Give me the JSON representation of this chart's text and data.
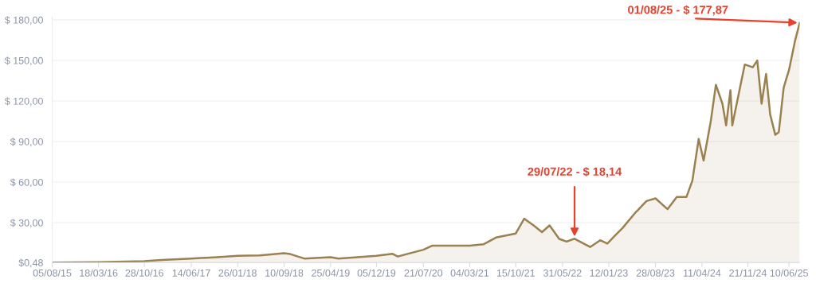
{
  "chart_data": {
    "type": "area",
    "x": [
      "2015-08-05",
      "2016-03-18",
      "2016-10-28",
      "2017-01-20",
      "2017-06-14",
      "2017-10-20",
      "2018-01-26",
      "2018-05-15",
      "2018-09-10",
      "2018-10-10",
      "2018-12-20",
      "2019-04-25",
      "2019-06-03",
      "2019-12-05",
      "2020-02-20",
      "2020-03-18",
      "2020-07-21",
      "2020-09-01",
      "2020-12-10",
      "2021-03-04",
      "2021-05-10",
      "2021-07-10",
      "2021-10-15",
      "2021-11-25",
      "2022-01-10",
      "2022-02-20",
      "2022-03-29",
      "2022-05-15",
      "2022-06-20",
      "2022-07-29",
      "2022-10-13",
      "2022-12-01",
      "2023-01-05",
      "2023-02-15",
      "2023-03-20",
      "2023-05-25",
      "2023-06-01",
      "2023-07-15",
      "2023-08-28",
      "2023-10-26",
      "2023-12-10",
      "2024-01-26",
      "2024-02-24",
      "2024-03-26",
      "2024-04-19",
      "2024-05-24",
      "2024-06-18",
      "2024-07-20",
      "2024-08-07",
      "2024-08-28",
      "2024-09-06",
      "2024-10-15",
      "2024-11-06",
      "2024-12-15",
      "2025-01-06",
      "2025-01-27",
      "2025-02-18",
      "2025-03-10",
      "2025-04-04",
      "2025-04-21",
      "2025-05-15",
      "2025-06-10",
      "2025-07-10",
      "2025-08-01"
    ],
    "series": [
      {
        "color": "#9a8150",
        "values": [
          0.5,
          0.8,
          1.6,
          2.5,
          3.5,
          4.5,
          5.5,
          5.8,
          7.4,
          6.8,
          3.4,
          4.5,
          3.5,
          5.5,
          7.0,
          5.0,
          10.0,
          13.0,
          13.0,
          13.0,
          14.0,
          19.0,
          22.0,
          33.0,
          28.0,
          23.0,
          28.0,
          18.0,
          16.0,
          18.14,
          12.0,
          17.0,
          14.5,
          21.0,
          26.0,
          38.0,
          39.0,
          46.0,
          48.0,
          40.0,
          49.0,
          49.0,
          61.0,
          92.0,
          76.0,
          105.0,
          132.0,
          118.0,
          102.0,
          128.0,
          102.0,
          131.0,
          147.0,
          145.0,
          150.0,
          118.0,
          140.0,
          110.0,
          95.0,
          97.0,
          130.0,
          143.0,
          165.0,
          177.87
        ]
      }
    ],
    "xlim": [
      "2015-08-05",
      "2025-08-01"
    ],
    "xticks": [
      {
        "value": "2015-08-05",
        "label": "05/08/15"
      },
      {
        "value": "2016-03-18",
        "label": "18/03/16"
      },
      {
        "value": "2016-10-28",
        "label": "28/10/16"
      },
      {
        "value": "2017-06-14",
        "label": "14/06/17"
      },
      {
        "value": "2018-01-26",
        "label": "26/01/18"
      },
      {
        "value": "2018-09-10",
        "label": "10/09/18"
      },
      {
        "value": "2019-04-25",
        "label": "25/04/19"
      },
      {
        "value": "2019-12-05",
        "label": "05/12/19"
      },
      {
        "value": "2020-07-21",
        "label": "21/07/20"
      },
      {
        "value": "2021-03-04",
        "label": "04/03/21"
      },
      {
        "value": "2021-10-15",
        "label": "15/10/21"
      },
      {
        "value": "2022-05-31",
        "label": "31/05/22"
      },
      {
        "value": "2023-01-12",
        "label": "12/01/23"
      },
      {
        "value": "2023-08-28",
        "label": "28/08/23"
      },
      {
        "value": "2024-04-11",
        "label": "11/04/24"
      },
      {
        "value": "2024-11-21",
        "label": "21/11/24"
      },
      {
        "value": "2025-06-10",
        "label": "10/06/25"
      }
    ],
    "ylim": [
      0.48,
      182
    ],
    "yticks": [
      {
        "value": 0.48,
        "label": "$0,48"
      },
      {
        "value": 30,
        "label": "$ 30,00"
      },
      {
        "value": 60,
        "label": "$ 60,00"
      },
      {
        "value": 90,
        "label": "$ 90,00"
      },
      {
        "value": 120,
        "label": "$ 120,00"
      },
      {
        "value": 150,
        "label": "$ 150,00"
      },
      {
        "value": 180,
        "label": "$ 180,00"
      }
    ],
    "grid": "y",
    "annotations": [
      {
        "text": "29/07/22 - $ 18,14",
        "x": "2022-07-29",
        "y": 18.14
      },
      {
        "text": "01/08/25 - $ 177,87",
        "x": "2025-08-01",
        "y": 177.87
      }
    ]
  }
}
